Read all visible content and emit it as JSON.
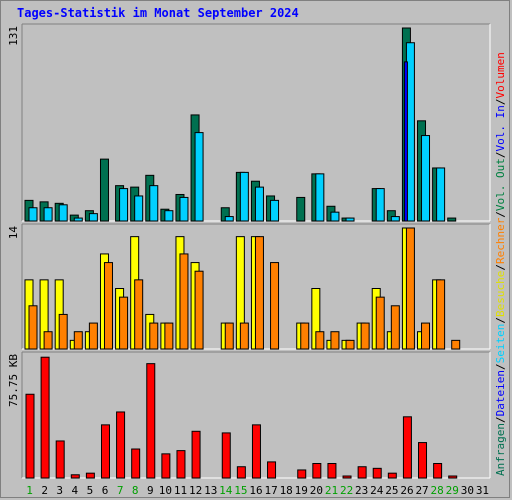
{
  "title": "Tages-Statistik im Monat September 2024",
  "colors": {
    "hits": "#007050",
    "files": "#00d0ff",
    "sites": "#ffff00",
    "visits": "#ff8000",
    "kbytes": "#ff0000",
    "volume_in": "#0000ff",
    "volume_out": "#008040",
    "weekend_day": "#00a000",
    "weekday": "#000000",
    "bg": "#c0c0c0",
    "title": "#0000ff"
  },
  "right_legend": [
    {
      "text": "Anfragen",
      "color": "#007050"
    },
    {
      "text": "/",
      "color": "#000000"
    },
    {
      "text": "Dateien",
      "color": "#0000ff"
    },
    {
      "text": "/",
      "color": "#000000"
    },
    {
      "text": "Seiten",
      "color": "#00d0ff"
    },
    {
      "text": "/",
      "color": "#000000"
    },
    {
      "text": "Besuche",
      "color": "#e0e000"
    },
    {
      "text": "/",
      "color": "#000000"
    },
    {
      "text": "Rechner",
      "color": "#ff8000"
    },
    {
      "text": "/",
      "color": "#000000"
    },
    {
      "text": "Vol. Out",
      "color": "#008040"
    },
    {
      "text": "/",
      "color": "#000000"
    },
    {
      "text": "Vol. In",
      "color": "#0000ff"
    },
    {
      "text": "/",
      "color": "#000000"
    },
    {
      "text": "Volumen",
      "color": "#ff0000"
    }
  ],
  "chart_data": {
    "type": "bar",
    "days": [
      "1",
      "2",
      "3",
      "4",
      "5",
      "6",
      "7",
      "8",
      "9",
      "10",
      "11",
      "12",
      "13",
      "14",
      "15",
      "16",
      "17",
      "18",
      "19",
      "20",
      "21",
      "22",
      "23",
      "24",
      "25",
      "26",
      "27",
      "28",
      "29",
      "30",
      "31"
    ],
    "weekend_days": [
      "1",
      "7",
      "8",
      "14",
      "15",
      "21",
      "22",
      "28",
      "29"
    ],
    "panels": [
      {
        "id": "hits",
        "max_label": "131",
        "ylim": [
          0,
          131
        ],
        "series": [
          {
            "key": "hits",
            "values": [
              14,
              13,
              12,
              4,
              7,
              42,
              24,
              23,
              31,
              8,
              18,
              72,
              0,
              9,
              33,
              27,
              17,
              0,
              16,
              32,
              10,
              2,
              0,
              22,
              7,
              131,
              68,
              36,
              2,
              0,
              0
            ]
          },
          {
            "key": "files",
            "values": [
              9,
              9,
              11,
              2,
              5,
              0,
              22,
              17,
              24,
              7,
              16,
              60,
              0,
              3,
              33,
              23,
              14,
              0,
              0,
              32,
              6,
              2,
              0,
              22,
              3,
              121,
              58,
              36,
              0,
              0,
              0
            ]
          },
          {
            "key": "pages",
            "values": [
              0,
              0,
              0,
              0,
              0,
              0,
              0,
              0,
              0,
              0,
              0,
              0,
              0,
              0,
              0,
              0,
              0,
              0,
              0,
              0,
              0,
              0,
              0,
              0,
              0,
              108,
              0,
              0,
              0,
              0,
              0
            ]
          }
        ]
      },
      {
        "id": "visits",
        "max_label": "14",
        "ylim": [
          0,
          14
        ],
        "series": [
          {
            "key": "sites",
            "values": [
              8,
              8,
              8,
              1,
              2,
              11,
              7,
              13,
              4,
              3,
              13,
              10,
              0,
              3,
              13,
              13,
              0,
              0,
              3,
              7,
              1,
              1,
              3,
              7,
              2,
              14,
              2,
              8,
              0,
              0,
              0
            ]
          },
          {
            "key": "visits",
            "values": [
              5,
              2,
              4,
              2,
              3,
              10,
              6,
              8,
              3,
              3,
              11,
              9,
              0,
              3,
              3,
              13,
              10,
              0,
              3,
              2,
              2,
              1,
              3,
              6,
              5,
              14,
              3,
              8,
              1,
              0,
              0
            ]
          }
        ]
      },
      {
        "id": "kbytes",
        "max_label": "75.75 KB",
        "ylim": [
          0,
          75.75
        ],
        "series": [
          {
            "key": "kbytes",
            "values": [
              52,
              75,
              23,
              2,
              3,
              33,
              41,
              18,
              71,
              15,
              17,
              29,
              0,
              28,
              7,
              33,
              10,
              0,
              5,
              9,
              9,
              1,
              7,
              6,
              3,
              38,
              22,
              9,
              1,
              0,
              0
            ]
          }
        ]
      }
    ]
  }
}
